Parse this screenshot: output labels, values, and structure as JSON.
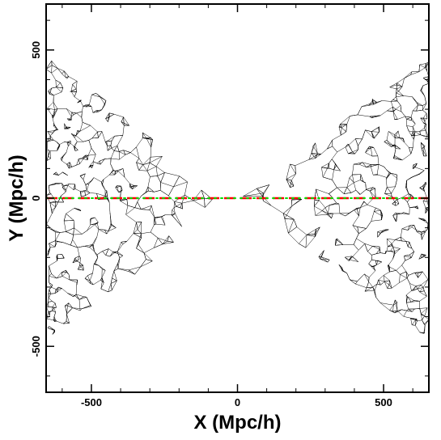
{
  "chart_data": {
    "type": "line",
    "xlabel": "X (Mpc/h)",
    "ylabel": "Y (Mpc/h)",
    "xlim": [
      -655,
      655
    ],
    "ylim": [
      -655,
      655
    ],
    "x_ticks": [
      -500,
      0,
      500
    ],
    "y_ticks": [
      -500,
      0,
      500
    ],
    "x_tick_labels": [
      "-500",
      "0",
      "500"
    ],
    "y_tick_labels": [
      "-500",
      "0",
      "500"
    ],
    "grid": false,
    "wedges": [
      {
        "apex": [
          0,
          0
        ],
        "edge_points": [
          [
            -655,
            480
          ],
          [
            -655,
            -480
          ]
        ]
      },
      {
        "apex": [
          0,
          0
        ],
        "edge_points": [
          [
            655,
            480
          ],
          [
            655,
            -480
          ]
        ]
      }
    ],
    "series": [
      {
        "style": "dashed",
        "color": "#ff0000",
        "x": [
          -655,
          655
        ],
        "y": [
          0,
          0
        ]
      },
      {
        "style": "dotted",
        "color": "#00dd00",
        "x": [
          -655,
          655
        ],
        "y": [
          0,
          0
        ]
      }
    ],
    "colors": {
      "network": "#000000",
      "axes": "#000000"
    }
  }
}
